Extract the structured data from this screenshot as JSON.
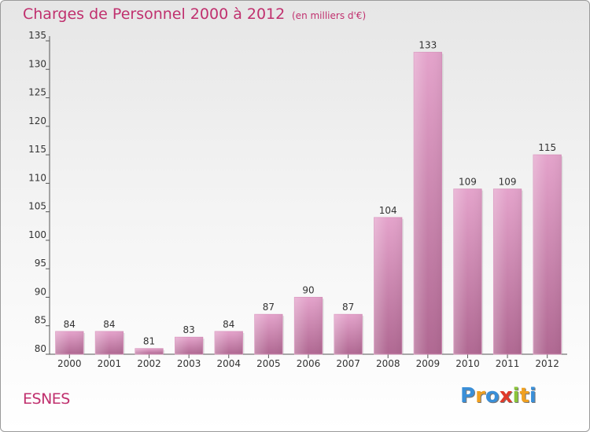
{
  "header": {
    "title": "Charges de Personnel 2000 à 2012",
    "subtitle": "(en milliers d'€)"
  },
  "footer": {
    "commune": "ESNES",
    "logo": [
      "P",
      "r",
      "o",
      "x",
      "i",
      "t",
      "i"
    ],
    "logo_colors": [
      "#3a8fd8",
      "#f0a020",
      "#3a8fd8",
      "#e03a2a",
      "#8ac43a",
      "#f0a020",
      "#3a8fd8"
    ]
  },
  "colors": {
    "text": "#c0306e",
    "bar_top": "#e4a3cb",
    "bar_bottom": "#b06892",
    "axis": "#555555"
  },
  "chart_data": {
    "type": "bar",
    "title": "Charges de Personnel 2000 à 2012",
    "subtitle": "(en milliers d'€)",
    "categories": [
      "2000",
      "2001",
      "2002",
      "2003",
      "2004",
      "2005",
      "2006",
      "2007",
      "2008",
      "2009",
      "2010",
      "2011",
      "2012"
    ],
    "values": [
      84,
      84,
      81,
      83,
      84,
      87,
      90,
      87,
      104,
      133,
      109,
      109,
      115
    ],
    "xlabel": "",
    "ylabel": "",
    "ylim": [
      80,
      135
    ],
    "yticks": [
      80,
      85,
      90,
      95,
      100,
      105,
      110,
      115,
      120,
      125,
      130,
      135
    ],
    "grid": false,
    "legend": "none"
  }
}
